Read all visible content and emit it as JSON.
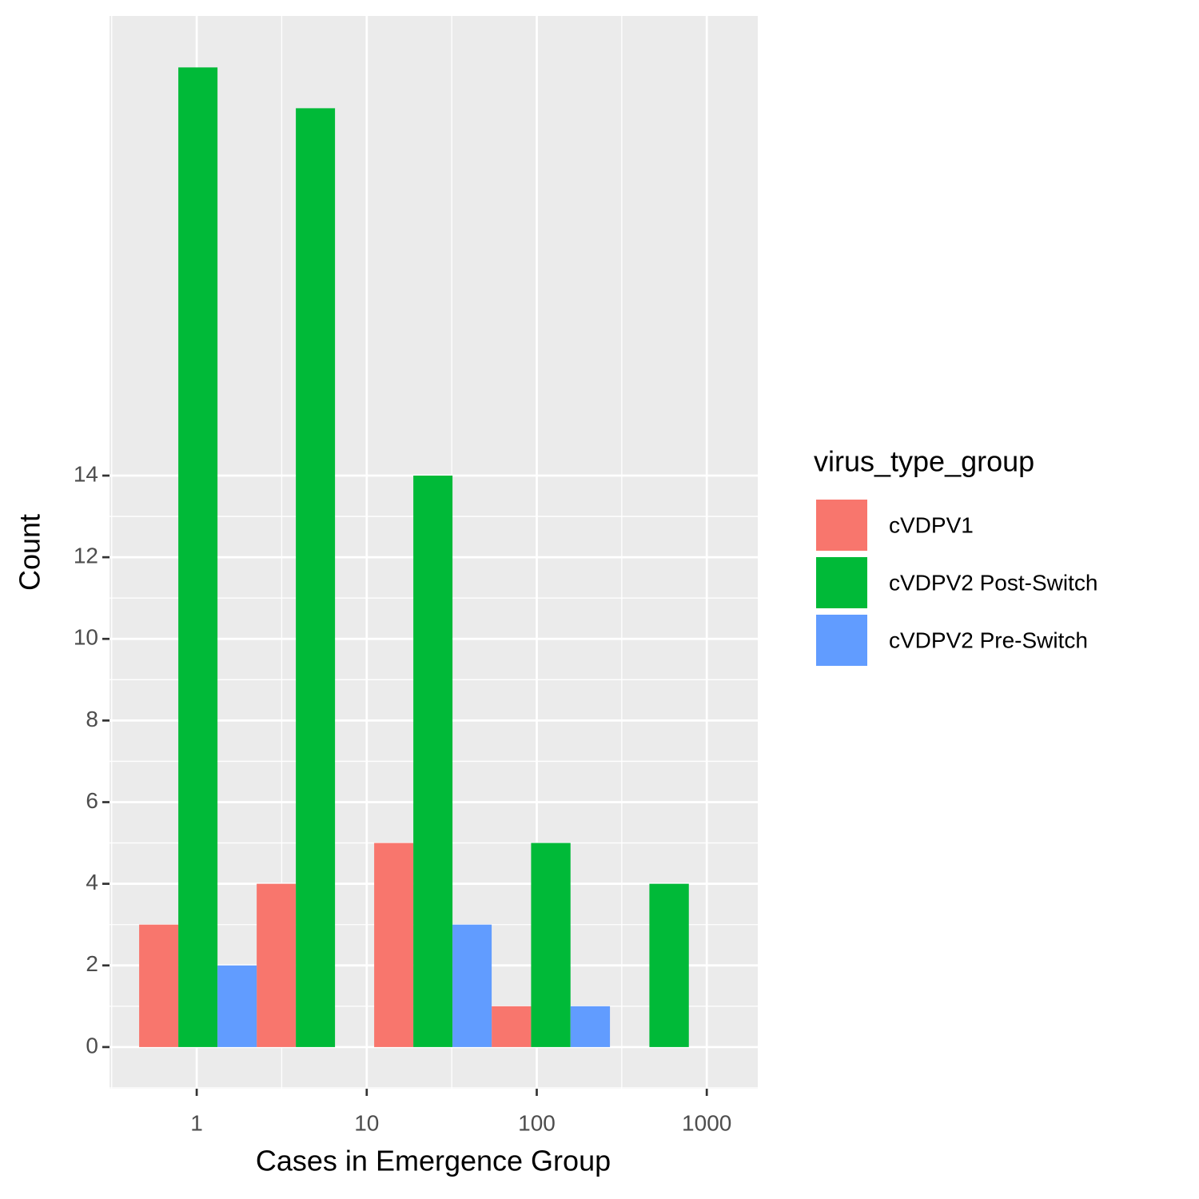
{
  "chart_data": {
    "type": "histogram",
    "x_label": "Cases in Emergence Group",
    "y_label": "Count",
    "legend_title": "virus_type_group",
    "bins": [
      0.4586,
      2.253,
      11.06,
      54.3,
      269.5,
      1338
    ],
    "series": [
      {
        "name": "cVDPV1",
        "color": "#F8766D",
        "values": [
          3,
          4,
          5,
          1,
          0
        ]
      },
      {
        "name": "cVDPV2 Post-Switch",
        "color": "#00BA38",
        "values": [
          24,
          23,
          14,
          5,
          4
        ]
      },
      {
        "name": "cVDPV2 Pre-Switch",
        "color": "#619CFF",
        "values": [
          2,
          0,
          3,
          1,
          0
        ]
      }
    ],
    "xlog": true,
    "xlim": [
      0.307,
      1995
    ],
    "xticks": [
      1,
      10,
      100,
      1000
    ],
    "ylim": [
      -1.02,
      25.26
    ],
    "yticks": [
      0,
      2,
      4,
      6,
      8,
      10,
      12,
      14
    ],
    "grid": true,
    "legend_position": "right"
  }
}
